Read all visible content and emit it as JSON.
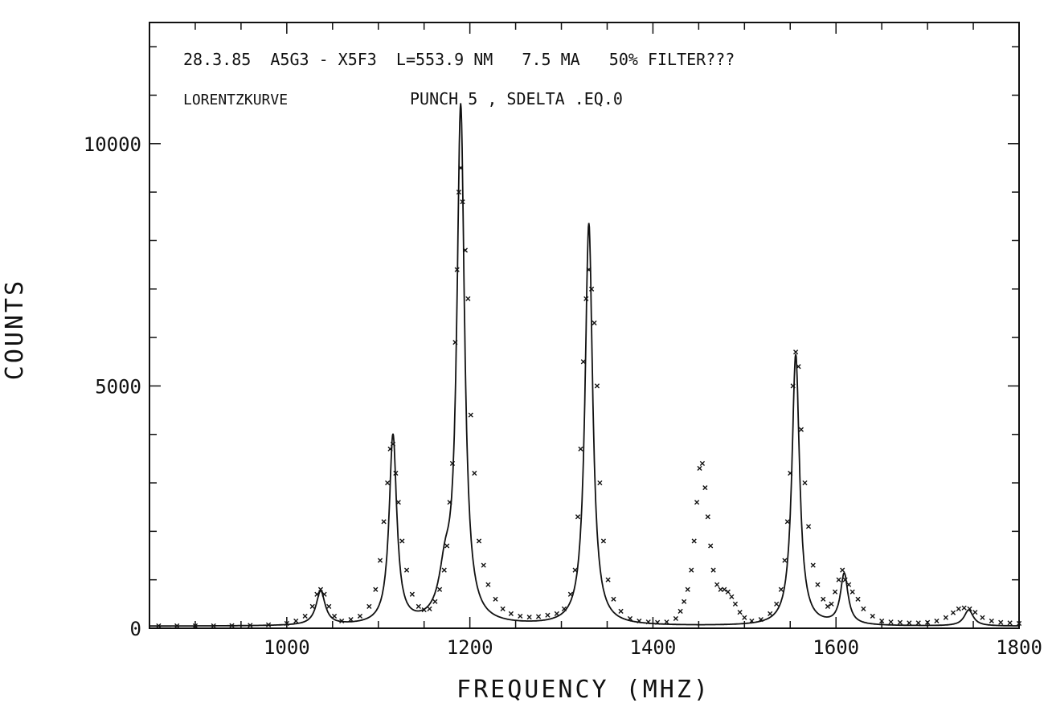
{
  "header": {
    "line1": "28.3.85  A5G3 - X5F3  L=553.9 NM   7.5 MA   50% FILTER???",
    "line2_left": "LORENTZKURVE",
    "line2_right": "PUNCH 5 , SDELTA .EQ.0"
  },
  "chart_data": {
    "type": "scatter",
    "title": "",
    "xlabel": "FREQUENCY (MHZ)",
    "ylabel": "COUNTS",
    "xlim": [
      850,
      1800
    ],
    "ylim": [
      0,
      12500
    ],
    "x_ticks": [
      1000,
      1200,
      1400,
      1600,
      1800
    ],
    "x_tick_labels": [
      "1000",
      "1200",
      "1400",
      "1600",
      "1800"
    ],
    "y_ticks": [
      0,
      5000,
      10000
    ],
    "y_tick_labels": [
      "0",
      "5000",
      "10000"
    ],
    "grid": false,
    "series": [
      {
        "kind": "markers",
        "marker": "x",
        "points": [
          [
            860,
            50
          ],
          [
            880,
            50
          ],
          [
            900,
            50
          ],
          [
            920,
            50
          ],
          [
            940,
            55
          ],
          [
            960,
            60
          ],
          [
            980,
            70
          ],
          [
            1000,
            100
          ],
          [
            1010,
            150
          ],
          [
            1020,
            250
          ],
          [
            1028,
            450
          ],
          [
            1033,
            700
          ],
          [
            1037,
            800
          ],
          [
            1041,
            700
          ],
          [
            1046,
            450
          ],
          [
            1052,
            250
          ],
          [
            1060,
            150
          ],
          [
            1070,
            180
          ],
          [
            1080,
            250
          ],
          [
            1090,
            450
          ],
          [
            1097,
            800
          ],
          [
            1102,
            1400
          ],
          [
            1106,
            2200
          ],
          [
            1110,
            3000
          ],
          [
            1113,
            3700
          ],
          [
            1116,
            3800
          ],
          [
            1119,
            3200
          ],
          [
            1122,
            2600
          ],
          [
            1126,
            1800
          ],
          [
            1131,
            1200
          ],
          [
            1137,
            700
          ],
          [
            1144,
            450
          ],
          [
            1150,
            380
          ],
          [
            1156,
            400
          ],
          [
            1162,
            550
          ],
          [
            1167,
            800
          ],
          [
            1172,
            1200
          ],
          [
            1175,
            1700
          ],
          [
            1178,
            2600
          ],
          [
            1181,
            3400
          ],
          [
            1184,
            5900
          ],
          [
            1186,
            7400
          ],
          [
            1188,
            9000
          ],
          [
            1190,
            9500
          ],
          [
            1192,
            8800
          ],
          [
            1195,
            7800
          ],
          [
            1198,
            6800
          ],
          [
            1201,
            4400
          ],
          [
            1205,
            3200
          ],
          [
            1210,
            1800
          ],
          [
            1215,
            1300
          ],
          [
            1220,
            900
          ],
          [
            1228,
            600
          ],
          [
            1236,
            400
          ],
          [
            1245,
            300
          ],
          [
            1255,
            250
          ],
          [
            1265,
            230
          ],
          [
            1275,
            240
          ],
          [
            1285,
            270
          ],
          [
            1295,
            300
          ],
          [
            1303,
            400
          ],
          [
            1310,
            700
          ],
          [
            1315,
            1200
          ],
          [
            1318,
            2300
          ],
          [
            1321,
            3700
          ],
          [
            1324,
            5500
          ],
          [
            1327,
            6800
          ],
          [
            1330,
            7400
          ],
          [
            1333,
            7000
          ],
          [
            1336,
            6300
          ],
          [
            1339,
            5000
          ],
          [
            1342,
            3000
          ],
          [
            1346,
            1800
          ],
          [
            1351,
            1000
          ],
          [
            1357,
            600
          ],
          [
            1365,
            350
          ],
          [
            1375,
            200
          ],
          [
            1385,
            150
          ],
          [
            1395,
            130
          ],
          [
            1405,
            120
          ],
          [
            1415,
            130
          ],
          [
            1425,
            200
          ],
          [
            1430,
            350
          ],
          [
            1434,
            550
          ],
          [
            1438,
            800
          ],
          [
            1442,
            1200
          ],
          [
            1445,
            1800
          ],
          [
            1448,
            2600
          ],
          [
            1451,
            3300
          ],
          [
            1454,
            3400
          ],
          [
            1457,
            2900
          ],
          [
            1460,
            2300
          ],
          [
            1463,
            1700
          ],
          [
            1466,
            1200
          ],
          [
            1470,
            900
          ],
          [
            1474,
            800
          ],
          [
            1478,
            800
          ],
          [
            1482,
            750
          ],
          [
            1486,
            650
          ],
          [
            1490,
            500
          ],
          [
            1495,
            330
          ],
          [
            1500,
            220
          ],
          [
            1508,
            150
          ],
          [
            1518,
            180
          ],
          [
            1528,
            300
          ],
          [
            1535,
            500
          ],
          [
            1540,
            800
          ],
          [
            1544,
            1400
          ],
          [
            1547,
            2200
          ],
          [
            1550,
            3200
          ],
          [
            1553,
            5000
          ],
          [
            1556,
            5700
          ],
          [
            1559,
            5400
          ],
          [
            1562,
            4100
          ],
          [
            1566,
            3000
          ],
          [
            1570,
            2100
          ],
          [
            1575,
            1300
          ],
          [
            1580,
            900
          ],
          [
            1586,
            600
          ],
          [
            1591,
            450
          ],
          [
            1595,
            500
          ],
          [
            1599,
            750
          ],
          [
            1603,
            1000
          ],
          [
            1607,
            1200
          ],
          [
            1610,
            1000
          ],
          [
            1614,
            900
          ],
          [
            1618,
            750
          ],
          [
            1624,
            600
          ],
          [
            1630,
            400
          ],
          [
            1640,
            250
          ],
          [
            1650,
            150
          ],
          [
            1660,
            130
          ],
          [
            1670,
            120
          ],
          [
            1680,
            110
          ],
          [
            1690,
            110
          ],
          [
            1700,
            120
          ],
          [
            1710,
            150
          ],
          [
            1720,
            220
          ],
          [
            1728,
            320
          ],
          [
            1734,
            400
          ],
          [
            1740,
            420
          ],
          [
            1746,
            400
          ],
          [
            1752,
            330
          ],
          [
            1760,
            220
          ],
          [
            1770,
            150
          ],
          [
            1780,
            120
          ],
          [
            1790,
            110
          ],
          [
            1800,
            100
          ]
        ]
      },
      {
        "kind": "fit-line",
        "peaks": [
          [
            1037,
            700,
            6
          ],
          [
            1116,
            3900,
            5
          ],
          [
            1173,
            900,
            8
          ],
          [
            1190,
            10600,
            5
          ],
          [
            1330,
            8300,
            5
          ],
          [
            1556,
            5600,
            5
          ],
          [
            1609,
            1050,
            5
          ],
          [
            1745,
            330,
            6
          ]
        ],
        "baseline": 40
      }
    ]
  }
}
